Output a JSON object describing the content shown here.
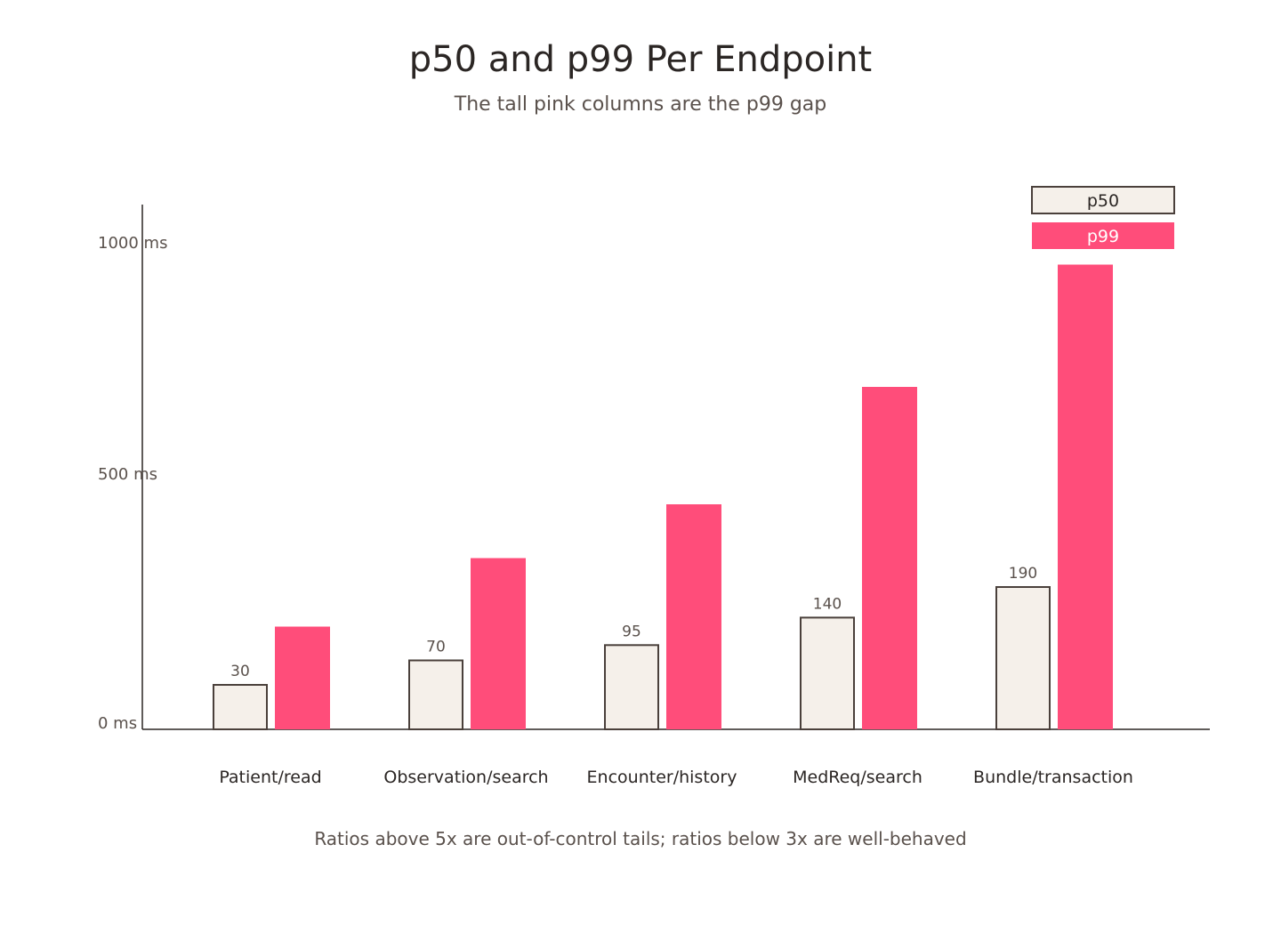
{
  "chart_data": {
    "type": "bar",
    "title": "p50 and p99 Per Endpoint",
    "subtitle": "The tall pink columns are the p99 gap",
    "caption": "Ratios above 5x are out-of-control tails; ratios below 3x are well-behaved",
    "xlabel": "",
    "ylabel": "",
    "categories": [
      "Patient/read",
      "Observation/search",
      "Encounter/history",
      "MedReq/search",
      "Bundle/transaction"
    ],
    "series": [
      {
        "name": "p50",
        "values": [
          30,
          70,
          95,
          140,
          190
        ],
        "color": "#f5f0ea",
        "stroke": "#4a403b",
        "labels": [
          "30",
          "70",
          "95",
          "140",
          "190"
        ]
      },
      {
        "name": "p99",
        "values": [
          210,
          350,
          460,
          700,
          950
        ],
        "color": "#ff4d7a"
      }
    ],
    "ylim": [
      0,
      1000
    ],
    "yticks": [
      {
        "value": 0,
        "label": "0 ms"
      },
      {
        "value": 500,
        "label": "500 ms"
      },
      {
        "value": 1000,
        "label": "1000 ms"
      }
    ],
    "grid": false,
    "legend": "top-right",
    "colors": {
      "axis": "#2b2624",
      "p50_fill": "#f5f0ea",
      "p50_stroke": "#4a403b",
      "p99_fill": "#ff4d7a"
    }
  }
}
